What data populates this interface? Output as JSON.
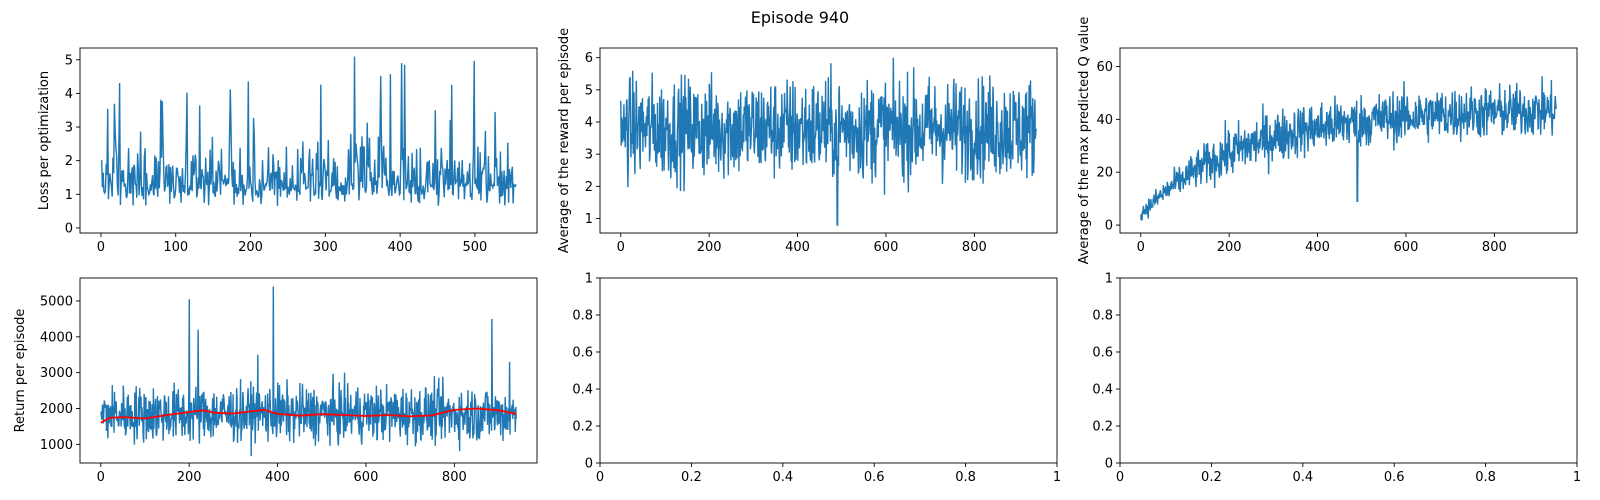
{
  "figure": {
    "suptitle": "Episode 940"
  },
  "chart_data": [
    {
      "type": "line",
      "ylabel": "Loss per optimization",
      "xlim": [
        -28,
        583
      ],
      "ylim": [
        -0.15,
        5.35
      ],
      "xticks": [
        0,
        100,
        200,
        300,
        400,
        500
      ],
      "yticks": [
        0,
        1,
        2,
        3,
        4,
        5
      ],
      "series": [
        {
          "color": "#1f77b4",
          "x_end": 555,
          "points": 556,
          "baseline": 1.3,
          "noise": 0.8,
          "spike_max": 5.15,
          "floor": 0.2
        }
      ]
    },
    {
      "type": "line",
      "ylabel": "Average of the reward per episode",
      "xlim": [
        -47,
        987
      ],
      "ylim": [
        0.55,
        6.3
      ],
      "xticks": [
        0,
        200,
        400,
        600,
        800
      ],
      "yticks": [
        1,
        2,
        3,
        4,
        5,
        6
      ],
      "series": [
        {
          "color": "#1f77b4",
          "x_end": 940,
          "points": 940,
          "baseline": 3.8,
          "noise": 1.1,
          "min": 0.8,
          "max": 6.0
        }
      ]
    },
    {
      "type": "line",
      "ylabel": "Average of the max predicted Q value",
      "xlim": [
        -47,
        987
      ],
      "ylim": [
        -3,
        67
      ],
      "xticks": [
        0,
        200,
        400,
        600,
        800
      ],
      "yticks": [
        0,
        20,
        40,
        60
      ],
      "series": [
        {
          "color": "#1f77b4",
          "x_end": 940,
          "points": 940,
          "start": 4,
          "plateau": 44,
          "noise": 7,
          "max": 64
        }
      ]
    },
    {
      "type": "line",
      "ylabel": "Return per episode",
      "xlim": [
        -47,
        987
      ],
      "ylim": [
        480,
        5640
      ],
      "xticks": [
        0,
        200,
        400,
        600,
        800
      ],
      "yticks": [
        1000,
        2000,
        3000,
        4000,
        5000
      ],
      "series": [
        {
          "color": "#1f77b4",
          "x_end": 940,
          "points": 940,
          "baseline": 1850,
          "noise": 550,
          "min": 650,
          "spikes": [
            [
              200,
              5050
            ],
            [
              220,
              4200
            ],
            [
              390,
              5400
            ],
            [
              355,
              3500
            ],
            [
              885,
              4500
            ],
            [
              925,
              3300
            ]
          ]
        },
        {
          "color": "#ff0000",
          "x": [
            0,
            20,
            50,
            100,
            150,
            200,
            230,
            260,
            300,
            340,
            370,
            400,
            450,
            500,
            550,
            600,
            650,
            700,
            750,
            800,
            850,
            900,
            940
          ],
          "values": [
            1600,
            1740,
            1760,
            1720,
            1820,
            1900,
            1950,
            1880,
            1860,
            1920,
            1960,
            1850,
            1800,
            1840,
            1820,
            1790,
            1820,
            1780,
            1810,
            1960,
            2000,
            1950,
            1850
          ]
        }
      ]
    },
    {
      "type": "line",
      "ylabel": "",
      "xlim": [
        0,
        1
      ],
      "ylim": [
        0,
        1
      ],
      "xticks": [
        0,
        0.2,
        0.4,
        0.6,
        0.8,
        1.0
      ],
      "yticks": [
        0,
        0.2,
        0.4,
        0.6,
        0.8,
        1.0
      ],
      "series": []
    },
    {
      "type": "line",
      "ylabel": "",
      "xlim": [
        0,
        1
      ],
      "ylim": [
        0,
        1
      ],
      "xticks": [
        0,
        0.2,
        0.4,
        0.6,
        0.8,
        1.0
      ],
      "yticks": [
        0,
        0.2,
        0.4,
        0.6,
        0.8,
        1.0
      ],
      "series": []
    }
  ]
}
